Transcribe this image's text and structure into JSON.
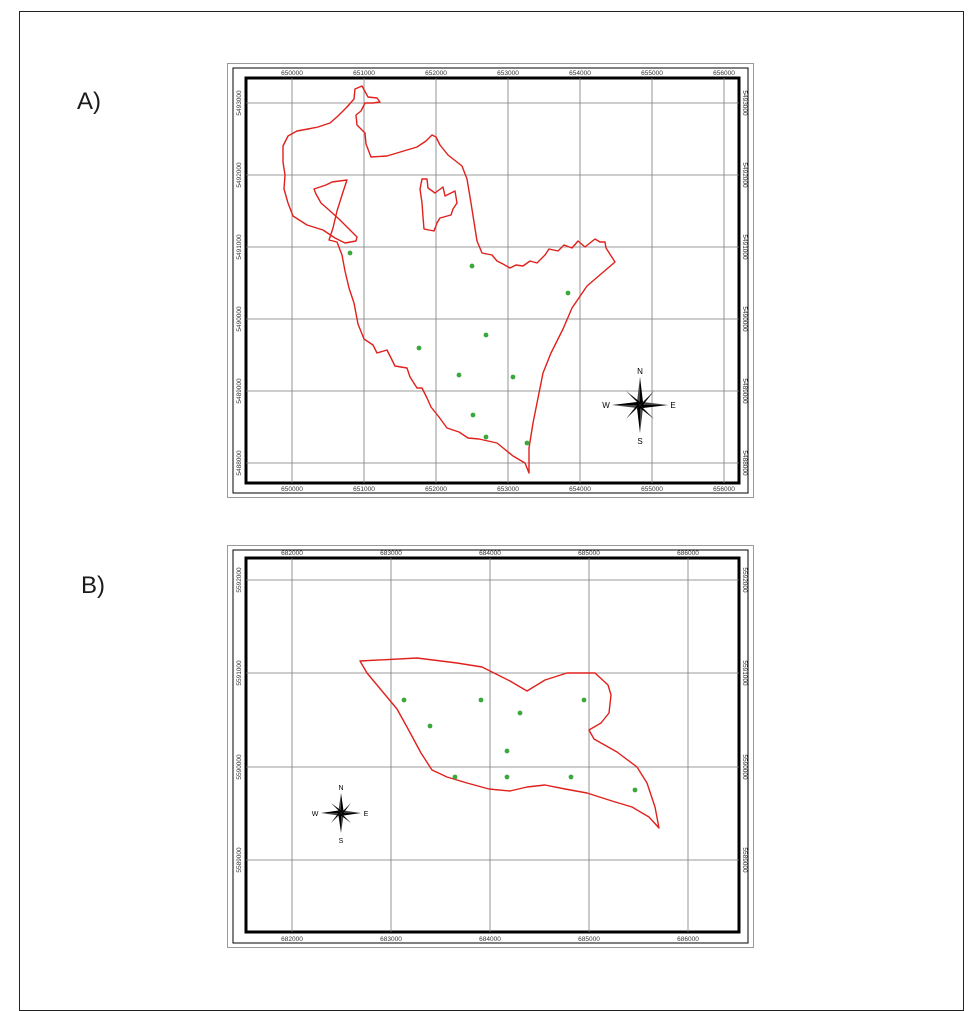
{
  "panels": [
    {
      "label": "A)",
      "x_ticks": [
        "650000",
        "651000",
        "652000",
        "653000",
        "654000",
        "655000",
        "656000"
      ],
      "y_ticks": [
        "5488000",
        "5489000",
        "5490000",
        "5491000",
        "5492000",
        "5493000"
      ],
      "compass": {
        "n": "N",
        "s": "S",
        "e": "E",
        "w": "W"
      },
      "boundary_color": "#e0201c",
      "point_color": "#3aa83a",
      "points_count": 11
    },
    {
      "label": "B)",
      "x_ticks": [
        "682000",
        "683000",
        "684000",
        "685000",
        "686000"
      ],
      "y_ticks": [
        "5589000",
        "5590000",
        "5591000",
        "5592000"
      ],
      "compass": {
        "n": "N",
        "s": "S",
        "e": "E",
        "w": "W"
      },
      "boundary_color": "#e0201c",
      "point_color": "#3aa83a",
      "points_count": 11
    }
  ]
}
